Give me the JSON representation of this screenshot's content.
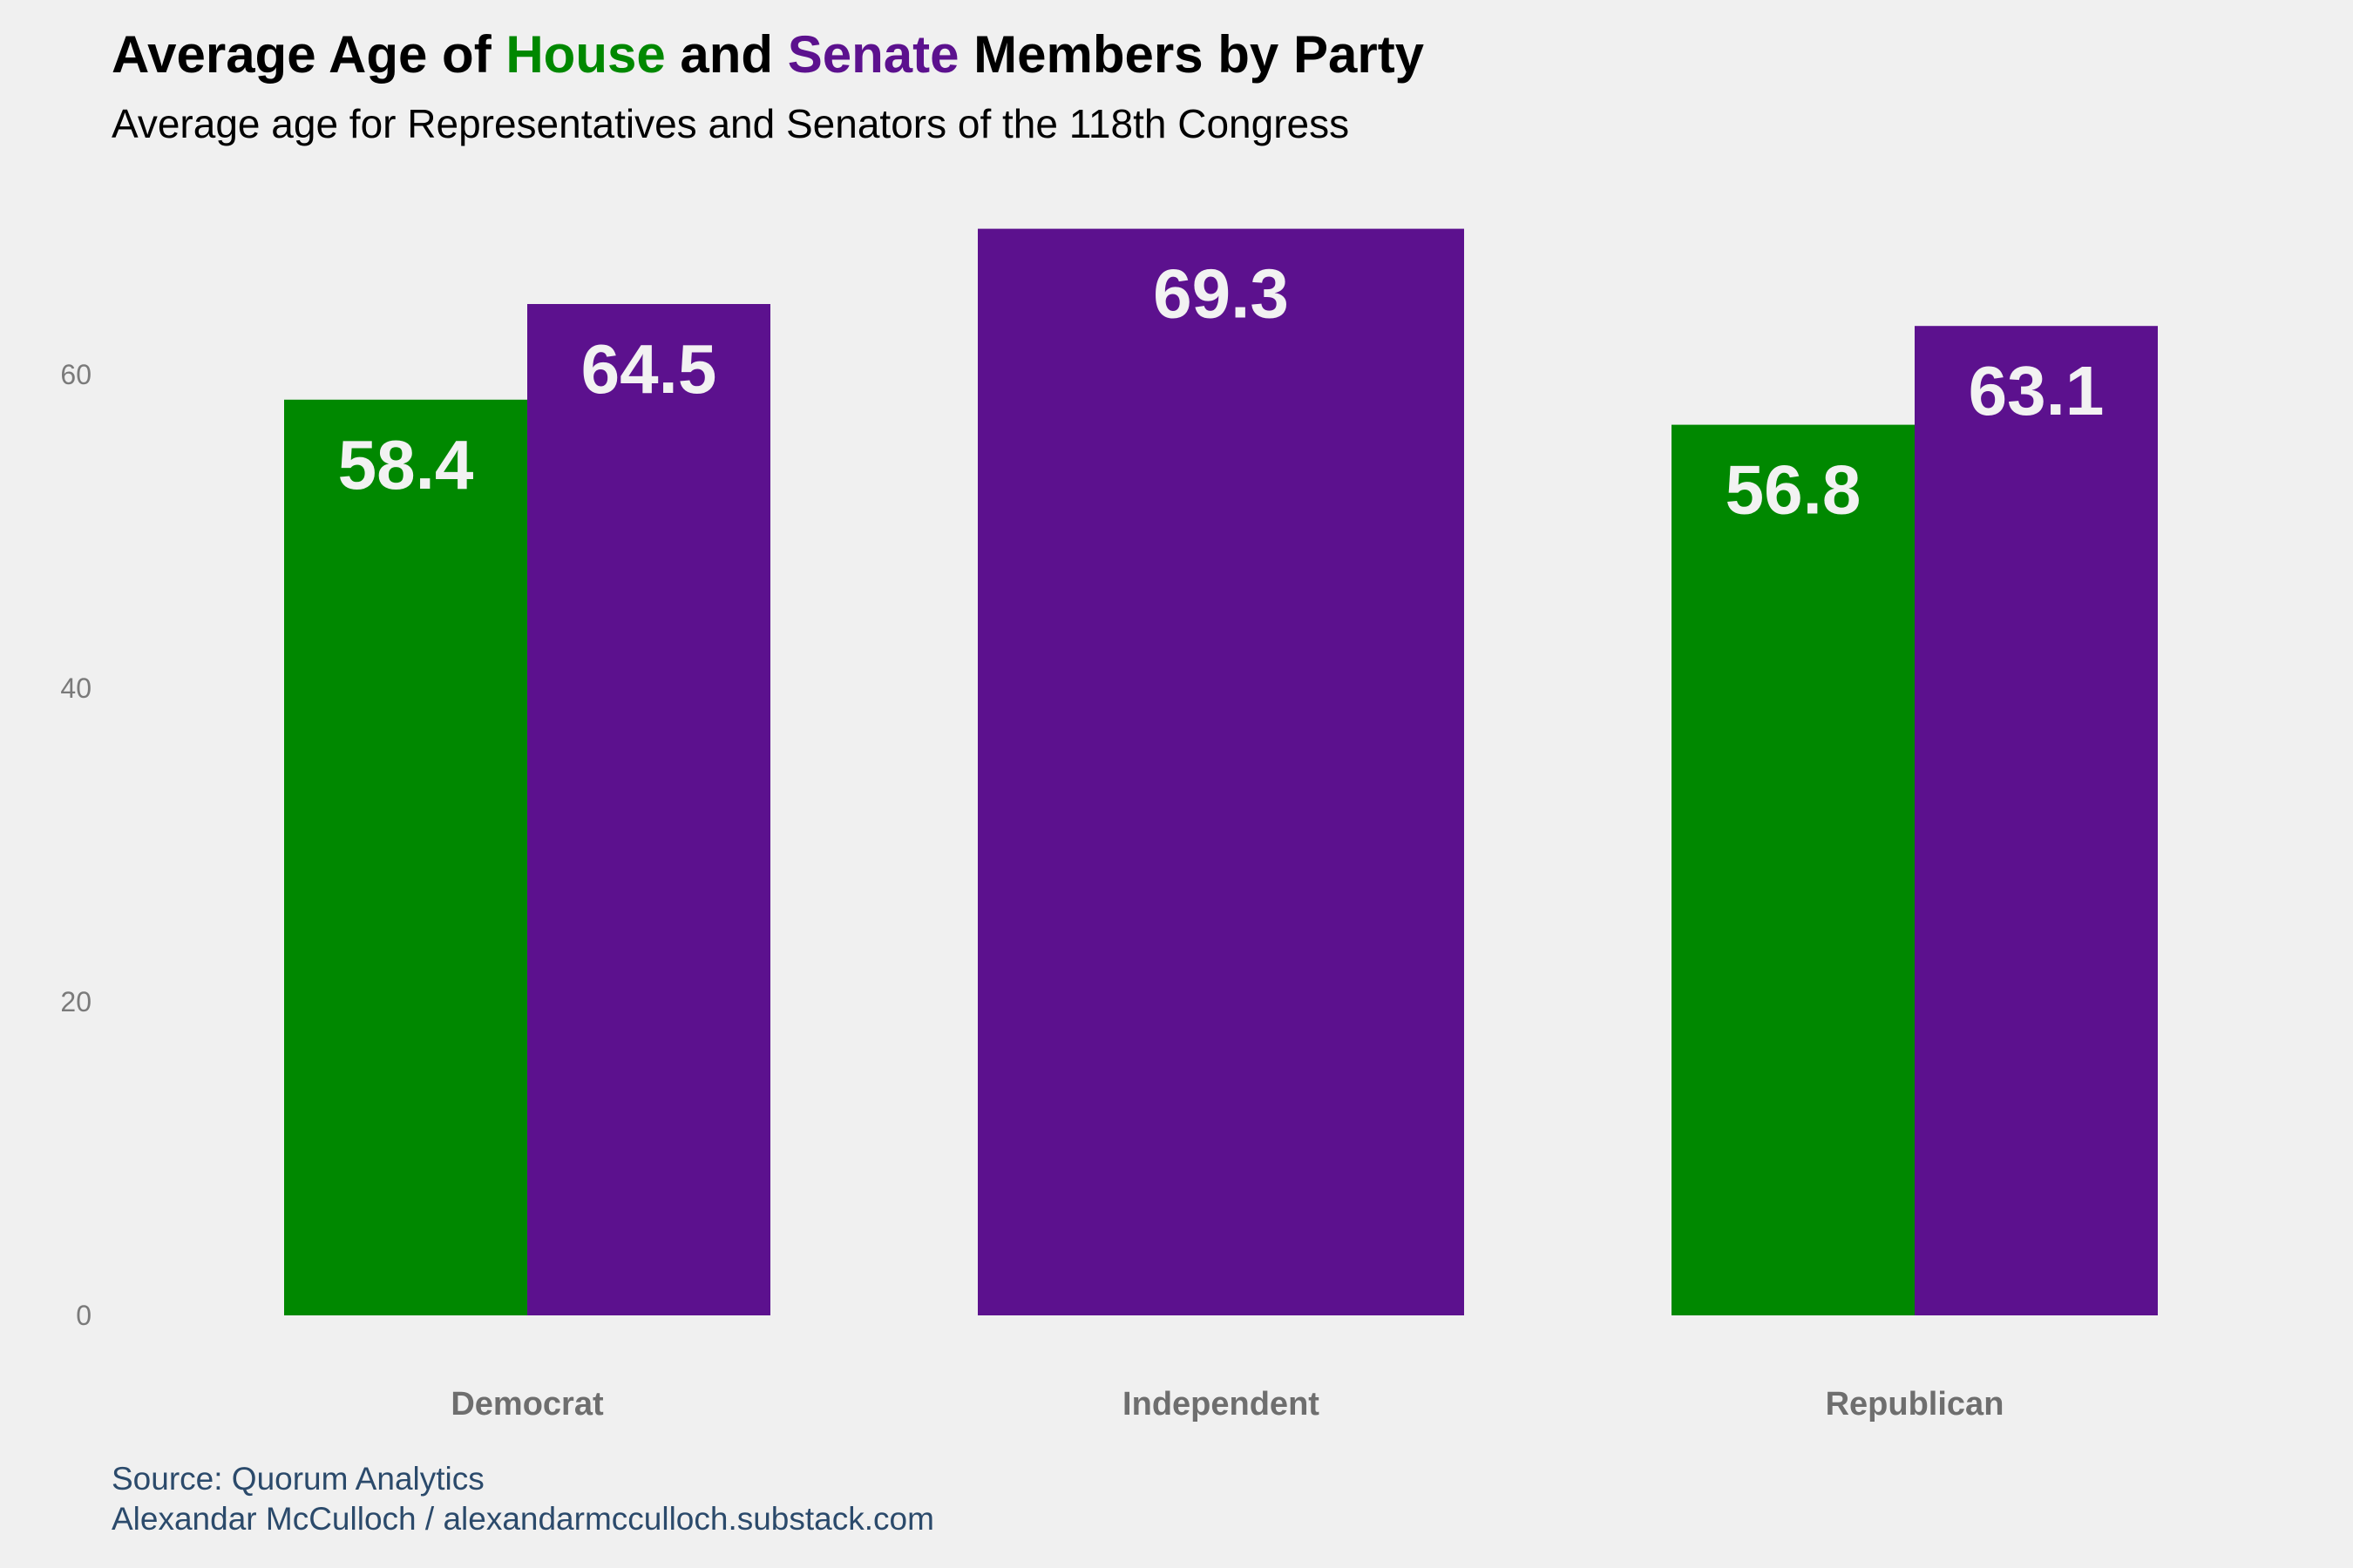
{
  "header": {
    "title_part1": "Average Age of ",
    "title_house": "House",
    "title_part2": " and ",
    "title_senate": "Senate",
    "title_part3": " Members by Party",
    "subtitle": "Average age for Representatives and Senators of the 118th Congress"
  },
  "caption": {
    "source": "Source: Quorum Analytics",
    "author": "Alexandar McCulloch / alexandarmcculloch.substack.com"
  },
  "colors": {
    "house": "#008800",
    "senate": "#5C118E",
    "background": "#F0F0F0"
  },
  "chart_data": {
    "type": "bar",
    "categories": [
      "Democrat",
      "Independent",
      "Republican"
    ],
    "series": [
      {
        "name": "House",
        "values": [
          58.4,
          null,
          56.8
        ]
      },
      {
        "name": "Senate",
        "values": [
          64.5,
          69.3,
          63.1
        ]
      }
    ],
    "ylim": [
      0,
      70
    ],
    "yticks": [
      0,
      20,
      40,
      60
    ],
    "grid": false,
    "legend": "in-title"
  }
}
